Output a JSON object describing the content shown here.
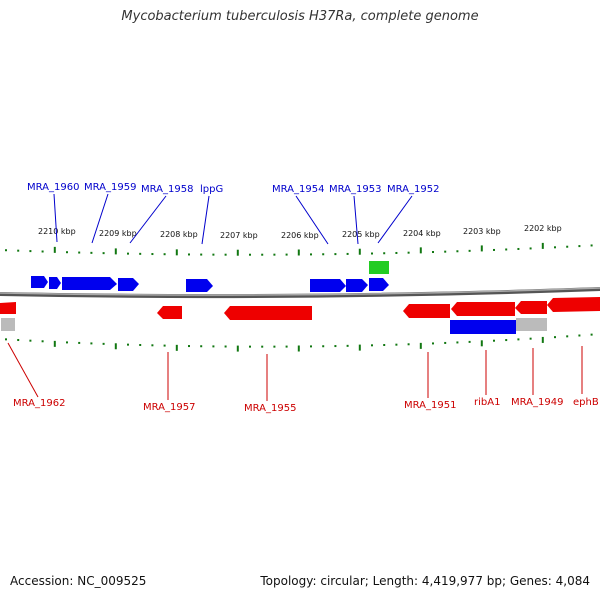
{
  "title": "Mycobacterium tuberculosis H37Ra, complete genome",
  "footer": {
    "accession": "Accession: NC_009525",
    "summary": "Topology: circular; Length: 4,419,977 bp; Genes: 4,084"
  },
  "colors": {
    "forward": "#0000ee",
    "reverse": "#ee0000",
    "pseudo": "#bbbbbb",
    "rna": "#22cc22",
    "tick": "#117711",
    "backbone": "#888888"
  },
  "scale": {
    "unit": "kbp",
    "labels": [
      "2210 kbp",
      "2209 kbp",
      "2208 kbp",
      "2207 kbp",
      "2206 kbp",
      "2205 kbp",
      "2204 kbp",
      "2203 kbp",
      "2202 kbp"
    ]
  },
  "genes_top": [
    "MRA_1960",
    "MRA_1959",
    "MRA_1958",
    "lppG",
    "MRA_1954",
    "MRA_1953",
    "MRA_1952"
  ],
  "genes_bottom": [
    "MRA_1962",
    "MRA_1957",
    "MRA_1955",
    "MRA_1951",
    "ribA1",
    "MRA_1949",
    "ephB"
  ]
}
